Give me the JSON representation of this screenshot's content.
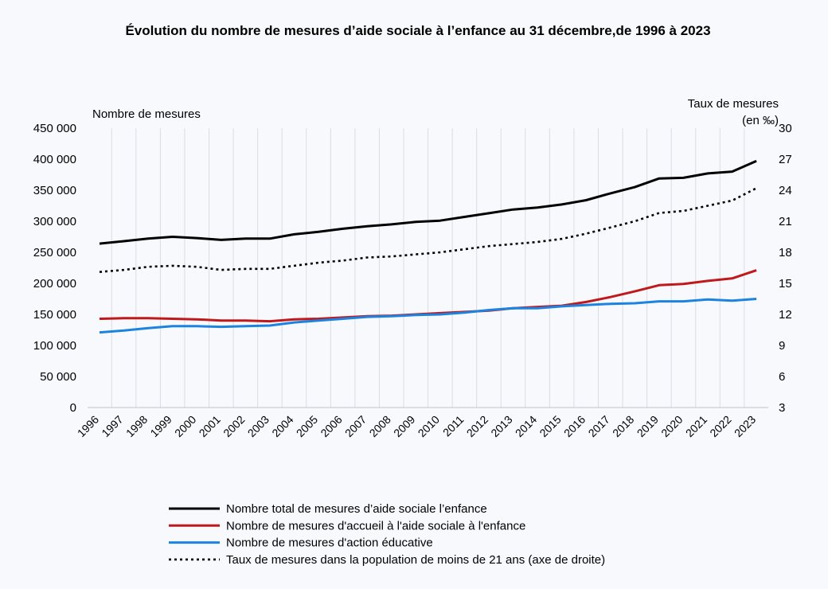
{
  "chart_data": {
    "type": "line",
    "title": "Évolution du nombre de mesures d’aide sociale à l’enfance au 31 décembre,de 1996 à 2023",
    "ylabel_left": "Nombre de mesures",
    "ylabel_right_line1": "Taux de mesures",
    "ylabel_right_line2": "(en ‰)",
    "ylim_left": [
      0,
      450000
    ],
    "ylim_right": [
      3,
      30
    ],
    "left_ticks": [
      0,
      50000,
      100000,
      150000,
      200000,
      250000,
      300000,
      350000,
      400000,
      450000
    ],
    "left_tick_labels": [
      "0",
      "50 000",
      "100 000",
      "150 000",
      "200 000",
      "250 000",
      "300 000",
      "350 000",
      "400 000",
      "450 000"
    ],
    "right_ticks": [
      3,
      6,
      9,
      12,
      15,
      18,
      21,
      24,
      27,
      30
    ],
    "right_tick_labels": [
      "3",
      "6",
      "9",
      "12",
      "15",
      "18",
      "21",
      "24",
      "27",
      "30"
    ],
    "grid": "vertical",
    "legend_position": "bottom",
    "categories": [
      "1996",
      "1997",
      "1998",
      "1999",
      "2000",
      "2001",
      "2002",
      "2003",
      "2004",
      "2005",
      "2006",
      "2007",
      "2008",
      "2009",
      "2010",
      "2011",
      "2012",
      "2013",
      "2014",
      "2015",
      "2016",
      "2017",
      "2018",
      "2019",
      "2020",
      "2021",
      "2022",
      "2023"
    ],
    "series": [
      {
        "name": "Nombre total de mesures d’aide sociale l’enfance",
        "axis": "left",
        "color": "#000000",
        "style": "solid",
        "values": [
          264000,
          268000,
          272000,
          275000,
          273000,
          270000,
          272000,
          272000,
          279000,
          283000,
          288000,
          292000,
          295000,
          299000,
          301000,
          307000,
          313000,
          319000,
          322000,
          327000,
          334000,
          345000,
          355000,
          369000,
          370000,
          377000,
          380000,
          397000
        ]
      },
      {
        "name": "Nombre de mesures d'accueil à l'aide sociale à l'enfance",
        "axis": "left",
        "color": "#c0191b",
        "style": "solid",
        "values": [
          143000,
          144000,
          144000,
          143000,
          142000,
          140000,
          140000,
          139000,
          142000,
          143000,
          145000,
          147000,
          148000,
          150000,
          152000,
          154000,
          156000,
          160000,
          162000,
          164000,
          170000,
          178000,
          187000,
          197000,
          199000,
          204000,
          208000,
          221000
        ]
      },
      {
        "name": "Nombre de mesures d'action éducative",
        "axis": "left",
        "color": "#1c83e0",
        "style": "solid",
        "values": [
          121000,
          124000,
          128000,
          131000,
          131000,
          130000,
          131000,
          132000,
          137000,
          140000,
          143000,
          146000,
          147000,
          149000,
          150000,
          153000,
          157000,
          160000,
          160000,
          163000,
          165000,
          167000,
          168000,
          171000,
          171000,
          174000,
          172000,
          175000
        ]
      },
      {
        "name": "Taux de mesures dans la population de moins de 21 ans (axe de droite)",
        "axis": "right",
        "color": "#000000",
        "style": "dotted",
        "values": [
          16.1,
          16.3,
          16.6,
          16.7,
          16.6,
          16.3,
          16.4,
          16.4,
          16.7,
          17.0,
          17.2,
          17.5,
          17.6,
          17.8,
          18.0,
          18.3,
          18.6,
          18.8,
          19.0,
          19.3,
          19.8,
          20.4,
          21.0,
          21.8,
          22.0,
          22.5,
          23.0,
          24.2
        ]
      }
    ]
  }
}
